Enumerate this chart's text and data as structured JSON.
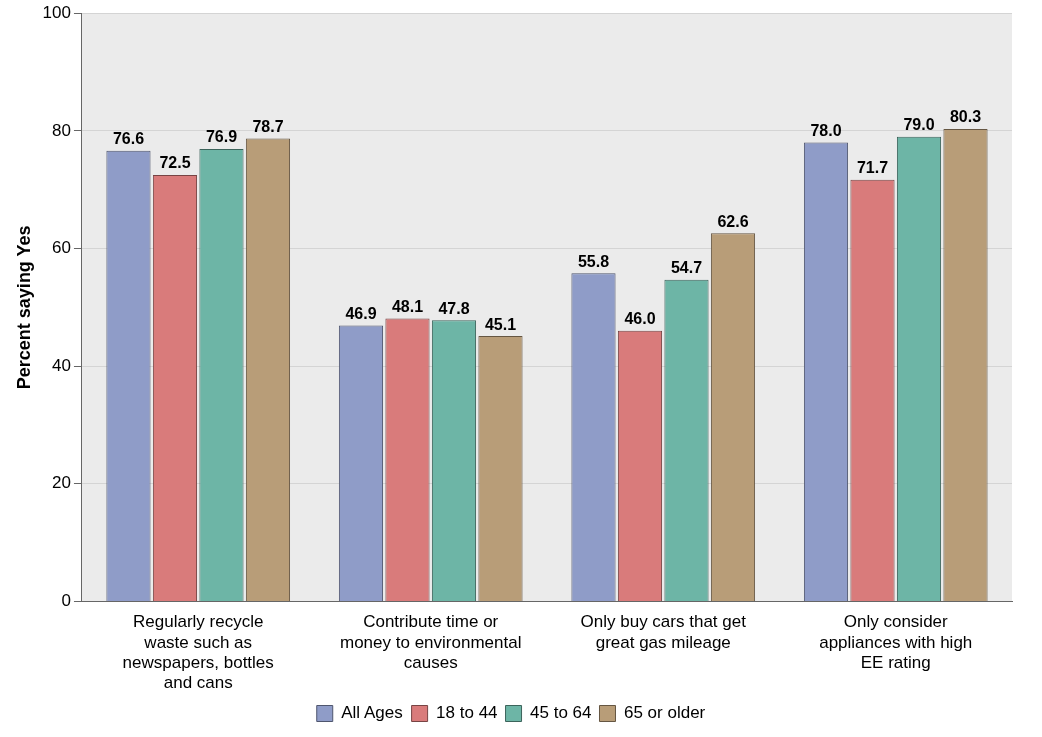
{
  "chart_data": {
    "type": "bar",
    "ylabel": "Percent saying Yes",
    "categories": [
      "Regularly recycle waste such as newspapers, bottles and cans",
      "Contribute time or money to environmental causes",
      "Only buy cars that get great gas mileage",
      "Only consider appliances with high EE rating"
    ],
    "series": [
      {
        "name": "All Ages",
        "color": "#8f9cc8",
        "values": [
          76.6,
          46.9,
          55.8,
          78.0
        ],
        "value_labels": [
          "76.6",
          "46.9",
          "55.8",
          "78.0"
        ]
      },
      {
        "name": "18 to 44",
        "color": "#d97b7b",
        "values": [
          72.5,
          48.1,
          46.0,
          71.7
        ],
        "value_labels": [
          "72.5",
          "48.1",
          "46.0",
          "71.7"
        ]
      },
      {
        "name": "45 to 64",
        "color": "#6db5a6",
        "values": [
          76.9,
          47.8,
          54.7,
          79.0
        ],
        "value_labels": [
          "76.9",
          "47.8",
          "54.7",
          "79.0"
        ]
      },
      {
        "name": "65 or older",
        "color": "#b89d78",
        "values": [
          78.7,
          45.1,
          62.6,
          80.3
        ],
        "value_labels": [
          "78.7",
          "45.1",
          "62.6",
          "80.3"
        ]
      }
    ],
    "ylim": [
      0,
      100
    ],
    "yticks": [
      0,
      20,
      40,
      60,
      80,
      100
    ],
    "grid": "y",
    "legend": "bottom"
  }
}
